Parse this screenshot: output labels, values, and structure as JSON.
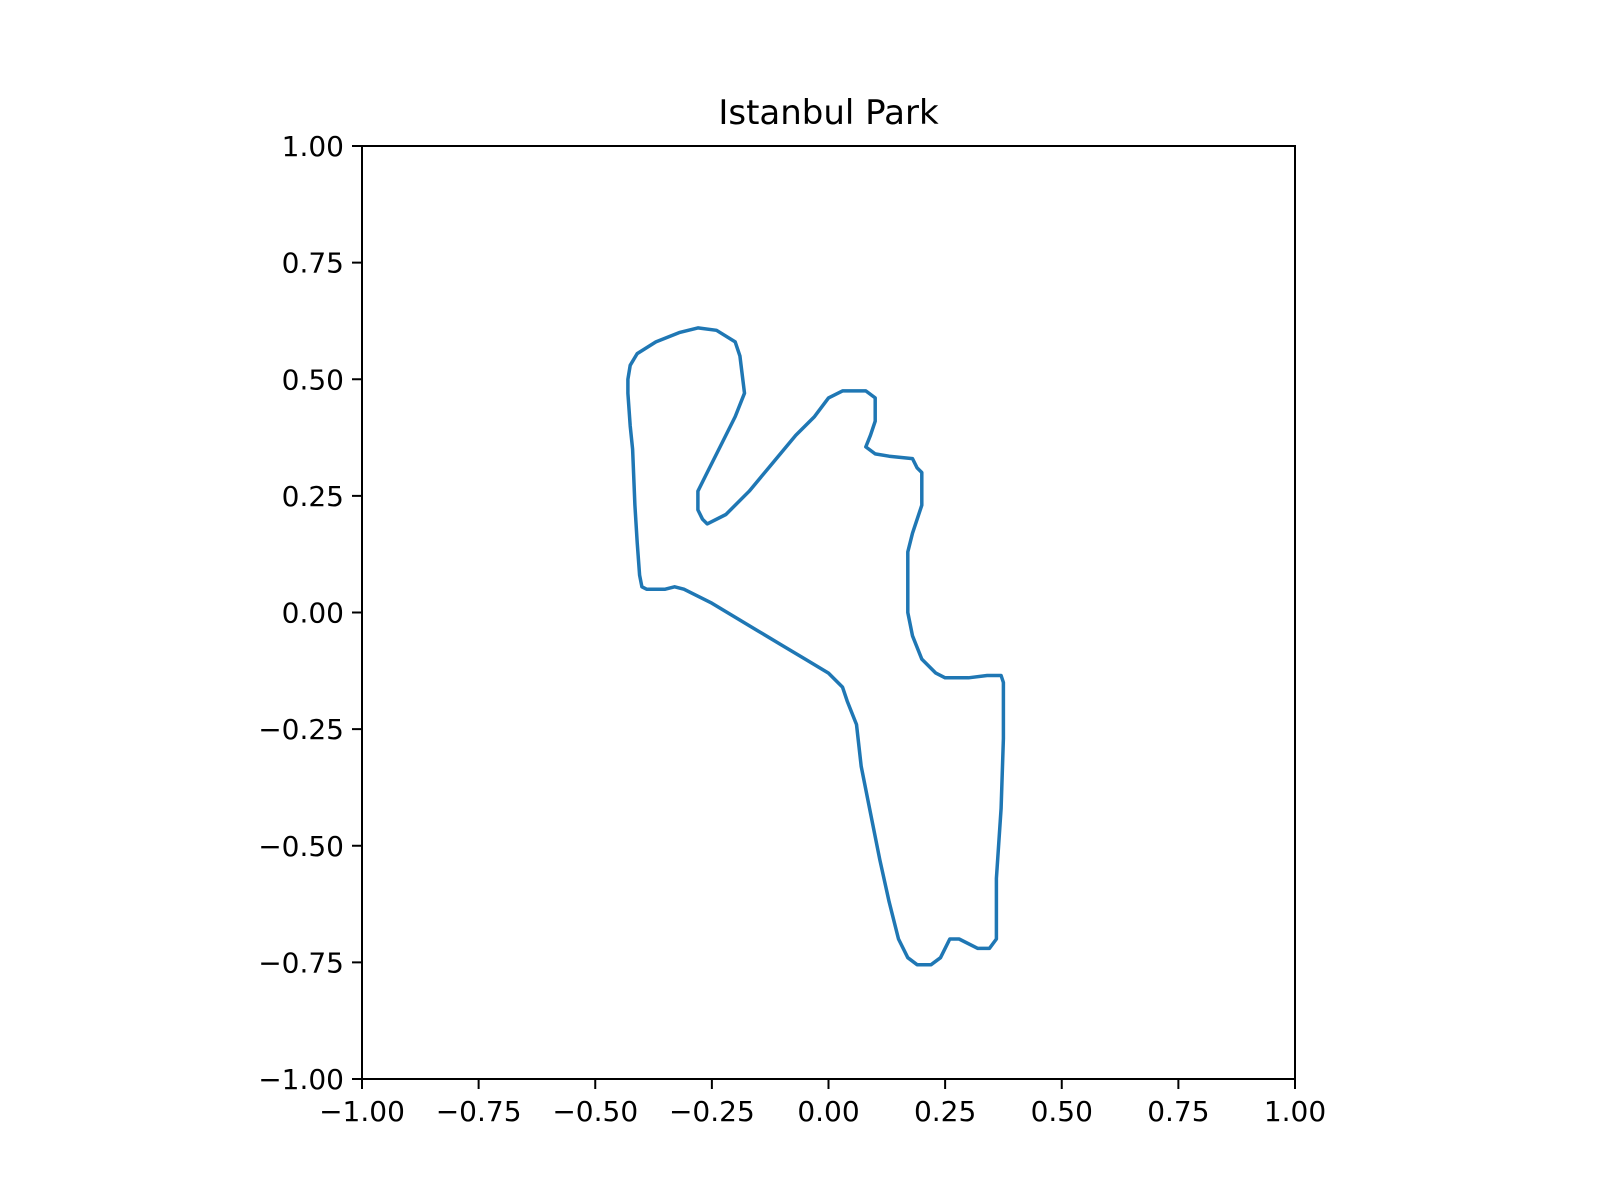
{
  "chart_data": {
    "type": "line",
    "title": "Istanbul Park",
    "xlabel": "",
    "ylabel": "",
    "xlim": [
      -1.0,
      1.0
    ],
    "ylim": [
      -1.0,
      1.0
    ],
    "xticks": [
      "−1.00",
      "−0.75",
      "−0.50",
      "−0.25",
      "0.00",
      "0.25",
      "0.50",
      "0.75",
      "1.00"
    ],
    "yticks": [
      "−1.00",
      "−0.75",
      "−0.50",
      "−0.25",
      "0.00",
      "0.25",
      "0.50",
      "0.75",
      "1.00"
    ],
    "grid": false,
    "legend": "none",
    "series": [
      {
        "color": "#1f77b4",
        "points": [
          [
            -0.43,
            0.5
          ],
          [
            -0.43,
            0.47
          ],
          [
            -0.425,
            0.4
          ],
          [
            -0.42,
            0.35
          ],
          [
            -0.415,
            0.23
          ],
          [
            -0.41,
            0.15
          ],
          [
            -0.405,
            0.08
          ],
          [
            -0.4,
            0.055
          ],
          [
            -0.39,
            0.05
          ],
          [
            -0.35,
            0.05
          ],
          [
            -0.33,
            0.055
          ],
          [
            -0.31,
            0.05
          ],
          [
            -0.28,
            0.035
          ],
          [
            -0.25,
            0.02
          ],
          [
            -0.2,
            -0.01
          ],
          [
            -0.15,
            -0.04
          ],
          [
            -0.1,
            -0.07
          ],
          [
            -0.05,
            -0.1
          ],
          [
            0.0,
            -0.13
          ],
          [
            0.03,
            -0.16
          ],
          [
            0.04,
            -0.19
          ],
          [
            0.06,
            -0.24
          ],
          [
            0.07,
            -0.33
          ],
          [
            0.09,
            -0.43
          ],
          [
            0.11,
            -0.53
          ],
          [
            0.13,
            -0.62
          ],
          [
            0.15,
            -0.7
          ],
          [
            0.17,
            -0.74
          ],
          [
            0.19,
            -0.755
          ],
          [
            0.22,
            -0.755
          ],
          [
            0.24,
            -0.74
          ],
          [
            0.26,
            -0.7
          ],
          [
            0.28,
            -0.7
          ],
          [
            0.32,
            -0.72
          ],
          [
            0.345,
            -0.72
          ],
          [
            0.36,
            -0.7
          ],
          [
            0.36,
            -0.57
          ],
          [
            0.37,
            -0.42
          ],
          [
            0.375,
            -0.27
          ],
          [
            0.375,
            -0.15
          ],
          [
            0.37,
            -0.135
          ],
          [
            0.34,
            -0.135
          ],
          [
            0.3,
            -0.14
          ],
          [
            0.25,
            -0.14
          ],
          [
            0.23,
            -0.13
          ],
          [
            0.2,
            -0.1
          ],
          [
            0.18,
            -0.05
          ],
          [
            0.17,
            0.0
          ],
          [
            0.17,
            0.05
          ],
          [
            0.17,
            0.13
          ],
          [
            0.18,
            0.17
          ],
          [
            0.2,
            0.23
          ],
          [
            0.2,
            0.3
          ],
          [
            0.19,
            0.31
          ],
          [
            0.18,
            0.33
          ],
          [
            0.13,
            0.335
          ],
          [
            0.1,
            0.34
          ],
          [
            0.08,
            0.355
          ],
          [
            0.09,
            0.38
          ],
          [
            0.1,
            0.41
          ],
          [
            0.1,
            0.46
          ],
          [
            0.08,
            0.475
          ],
          [
            0.03,
            0.475
          ],
          [
            0.0,
            0.46
          ],
          [
            -0.03,
            0.42
          ],
          [
            -0.07,
            0.38
          ],
          [
            -0.12,
            0.32
          ],
          [
            -0.17,
            0.26
          ],
          [
            -0.22,
            0.21
          ],
          [
            -0.26,
            0.19
          ],
          [
            -0.27,
            0.2
          ],
          [
            -0.28,
            0.22
          ],
          [
            -0.28,
            0.26
          ],
          [
            -0.26,
            0.3
          ],
          [
            -0.23,
            0.36
          ],
          [
            -0.2,
            0.42
          ],
          [
            -0.18,
            0.47
          ],
          [
            -0.19,
            0.55
          ],
          [
            -0.2,
            0.58
          ],
          [
            -0.24,
            0.605
          ],
          [
            -0.28,
            0.61
          ],
          [
            -0.32,
            0.6
          ],
          [
            -0.37,
            0.58
          ],
          [
            -0.41,
            0.555
          ],
          [
            -0.425,
            0.53
          ],
          [
            -0.43,
            0.5
          ]
        ]
      }
    ]
  }
}
